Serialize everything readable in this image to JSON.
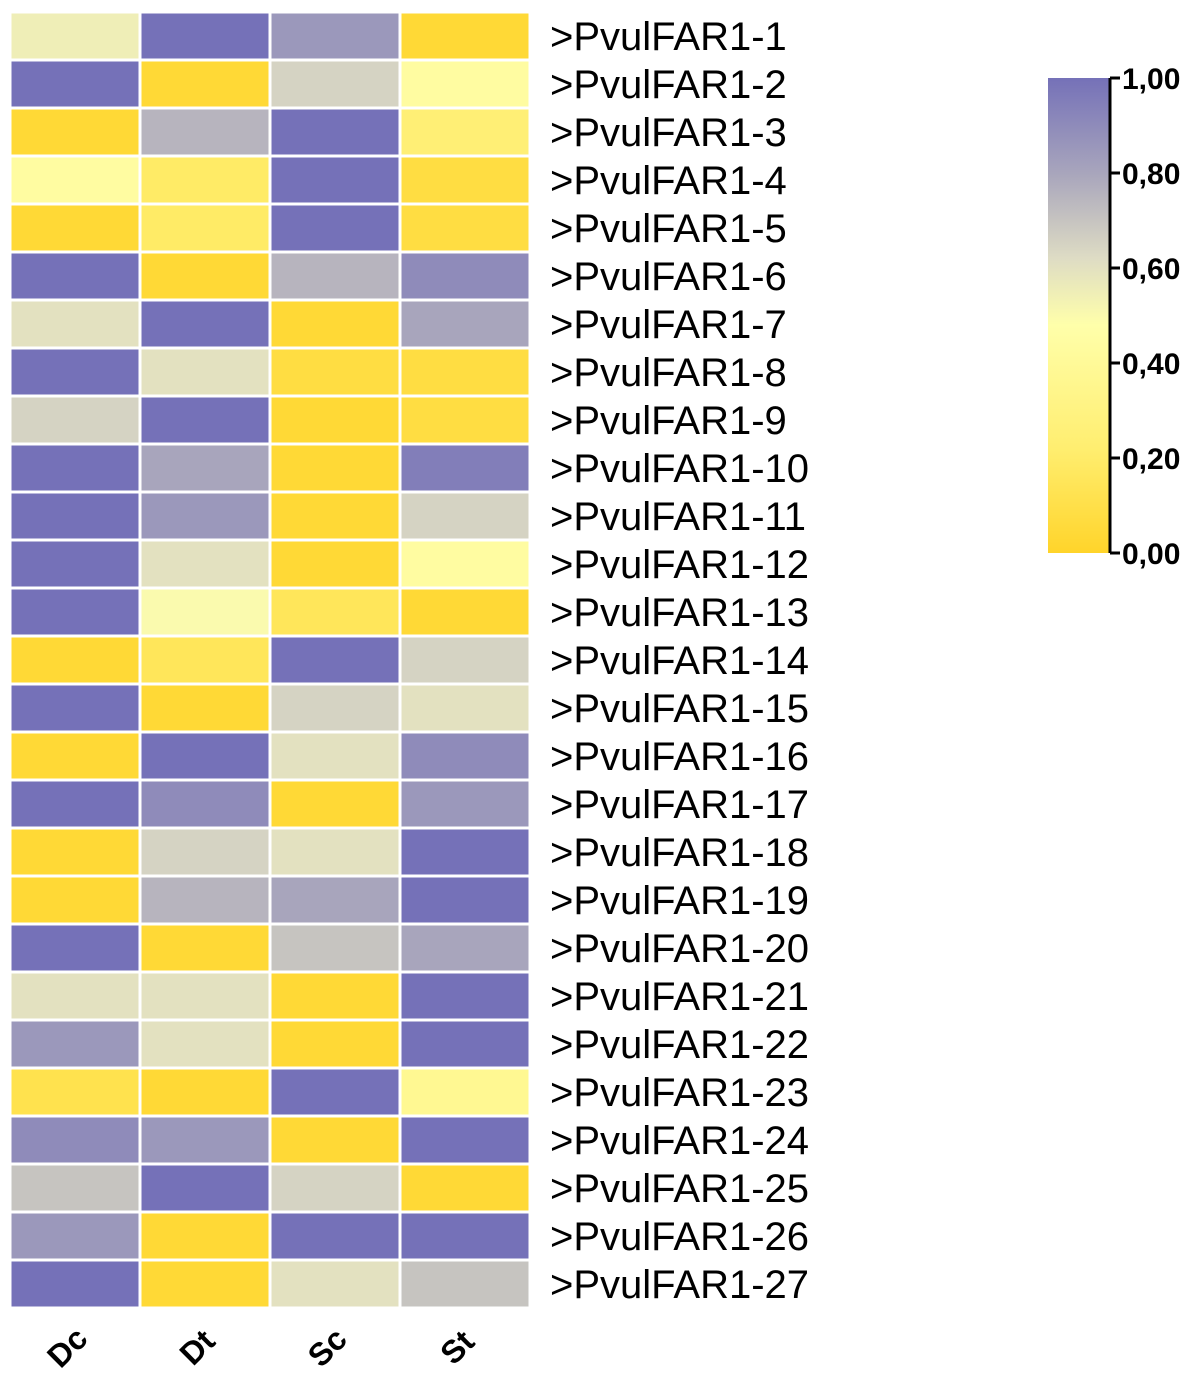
{
  "chart_data": {
    "type": "heatmap",
    "title": "",
    "columns": [
      "Dc",
      "Dt",
      "Sc",
      "St"
    ],
    "rows": [
      ">PvulFAR1-1",
      ">PvulFAR1-2",
      ">PvulFAR1-3",
      ">PvulFAR1-4",
      ">PvulFAR1-5",
      ">PvulFAR1-6",
      ">PvulFAR1-7",
      ">PvulFAR1-8",
      ">PvulFAR1-9",
      ">PvulFAR1-10",
      ">PvulFAR1-11",
      ">PvulFAR1-12",
      ">PvulFAR1-13",
      ">PvulFAR1-14",
      ">PvulFAR1-15",
      ">PvulFAR1-16",
      ">PvulFAR1-17",
      ">PvulFAR1-18",
      ">PvulFAR1-19",
      ">PvulFAR1-20",
      ">PvulFAR1-21",
      ">PvulFAR1-22",
      ">PvulFAR1-23",
      ">PvulFAR1-24",
      ">PvulFAR1-25",
      ">PvulFAR1-26",
      ">PvulFAR1-27"
    ],
    "values": [
      [
        0.55,
        1.0,
        0.85,
        0.05
      ],
      [
        1.0,
        0.05,
        0.65,
        0.45
      ],
      [
        0.05,
        0.75,
        1.0,
        0.3
      ],
      [
        0.45,
        0.25,
        1.0,
        0.1
      ],
      [
        0.05,
        0.25,
        1.0,
        0.1
      ],
      [
        1.0,
        0.05,
        0.75,
        0.9
      ],
      [
        0.6,
        1.0,
        0.05,
        0.8
      ],
      [
        1.0,
        0.6,
        0.1,
        0.1
      ],
      [
        0.65,
        1.0,
        0.05,
        0.1
      ],
      [
        1.0,
        0.8,
        0.05,
        0.95
      ],
      [
        1.0,
        0.85,
        0.05,
        0.65
      ],
      [
        1.0,
        0.6,
        0.05,
        0.45
      ],
      [
        1.0,
        0.5,
        0.2,
        0.05
      ],
      [
        0.05,
        0.2,
        1.0,
        0.65
      ],
      [
        1.0,
        0.05,
        0.65,
        0.6
      ],
      [
        0.05,
        1.0,
        0.6,
        0.9
      ],
      [
        1.0,
        0.9,
        0.05,
        0.85
      ],
      [
        0.05,
        0.65,
        0.6,
        1.0
      ],
      [
        0.05,
        0.75,
        0.8,
        1.0
      ],
      [
        1.0,
        0.05,
        0.7,
        0.8
      ],
      [
        0.6,
        0.6,
        0.05,
        1.0
      ],
      [
        0.85,
        0.6,
        0.05,
        1.0
      ],
      [
        0.15,
        0.05,
        1.0,
        0.4
      ],
      [
        0.9,
        0.85,
        0.05,
        1.0
      ],
      [
        0.7,
        1.0,
        0.65,
        0.05
      ],
      [
        0.85,
        0.05,
        1.0,
        1.0
      ],
      [
        1.0,
        0.05,
        0.6,
        0.7
      ]
    ],
    "color_scale": {
      "min": 0.0,
      "max": 1.0,
      "stops": [
        {
          "value": 0.0,
          "color": "#FFD42A"
        },
        {
          "value": 0.5,
          "color": "#FFFFAA"
        },
        {
          "value": 1.0,
          "color": "#7571B8"
        }
      ],
      "mid_color_at_0_6": "#E0DFC8",
      "mid_color_at_0_8": "#A9A6B8"
    },
    "legend": {
      "ticks": [
        "0,00",
        "0,20",
        "0,40",
        "0,60",
        "0,80",
        "1,00"
      ],
      "placement": "top-right"
    }
  }
}
